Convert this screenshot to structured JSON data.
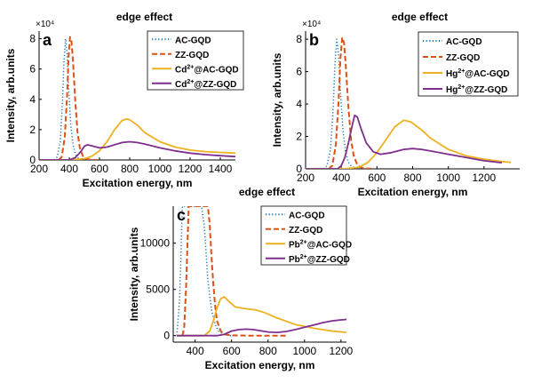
{
  "colors": {
    "ac": "#1f77b4",
    "zz": "#d95319",
    "cd_ac": "#edb120",
    "cd_zz": "#7e2f8e",
    "axis": "#000000"
  },
  "chart_data": [
    {
      "type": "line",
      "panel_letter": "a",
      "title": "edge effect",
      "xlabel": "Excitation energy, nm",
      "ylabel": "Intensity, arb.units",
      "exponent_label": "×10⁴",
      "xlim": [
        200,
        1500
      ],
      "ylim": [
        0,
        8.5
      ],
      "xticks": [
        200,
        400,
        600,
        800,
        1000,
        1200,
        1400
      ],
      "yticks": [
        0,
        2,
        4,
        6,
        8
      ],
      "grid": false,
      "legend_position": "top-right",
      "series": [
        {
          "name": "AC-GQD",
          "ion": "",
          "suffix": "",
          "style": "dotted",
          "color_key": "ac",
          "x": [
            300,
            320,
            340,
            355,
            365,
            375,
            385,
            395,
            410,
            425,
            440,
            460,
            480,
            500,
            530
          ],
          "y": [
            0,
            0.2,
            1.2,
            3.8,
            6.5,
            8.0,
            7.0,
            4.8,
            2.3,
            1.0,
            0.4,
            0.12,
            0.05,
            0.02,
            0
          ]
        },
        {
          "name": "ZZ-GQD",
          "ion": "",
          "suffix": "",
          "style": "dashed",
          "color_key": "zz",
          "x": [
            330,
            350,
            370,
            385,
            395,
            405,
            415,
            425,
            440,
            455,
            470,
            490,
            510,
            540,
            580
          ],
          "y": [
            0,
            0.2,
            1.5,
            4.2,
            6.8,
            8.1,
            7.8,
            6.4,
            3.8,
            1.8,
            0.8,
            0.25,
            0.08,
            0.02,
            0
          ]
        },
        {
          "name": "Cd",
          "ion": "2+",
          "suffix": "@AC-GQD",
          "style": "solid",
          "color_key": "cd_ac",
          "x": [
            200,
            400,
            500,
            550,
            600,
            650,
            700,
            750,
            780,
            800,
            850,
            900,
            1000,
            1100,
            1200,
            1300,
            1400,
            1500
          ],
          "y": [
            0,
            0,
            0.08,
            0.25,
            0.6,
            1.2,
            2.0,
            2.6,
            2.7,
            2.65,
            2.3,
            1.8,
            1.2,
            0.85,
            0.65,
            0.55,
            0.5,
            0.45
          ]
        },
        {
          "name": "Cd",
          "ion": "2+",
          "suffix": "@ZZ-GQD",
          "style": "solid",
          "color_key": "cd_zz",
          "x": [
            200,
            400,
            440,
            480,
            500,
            520,
            560,
            600,
            650,
            700,
            750,
            800,
            850,
            900,
            1000,
            1100,
            1200,
            1300,
            1400,
            1500
          ],
          "y": [
            0,
            0,
            0.15,
            0.6,
            0.9,
            1.0,
            0.9,
            0.8,
            0.85,
            1.0,
            1.15,
            1.2,
            1.15,
            1.05,
            0.8,
            0.6,
            0.45,
            0.35,
            0.28,
            0.22
          ]
        }
      ]
    },
    {
      "type": "line",
      "panel_letter": "b",
      "title": "edge effect",
      "xlabel": "Excitation energy, nm",
      "ylabel": "Intensity, arb.units",
      "exponent_label": "×10⁴",
      "xlim": [
        200,
        1400
      ],
      "ylim": [
        0,
        8.5
      ],
      "xticks": [
        200,
        400,
        600,
        800,
        1000,
        1200
      ],
      "yticks": [
        0,
        2,
        4,
        6,
        8
      ],
      "grid": false,
      "legend_position": "top-right",
      "series": [
        {
          "name": "AC-GQD",
          "ion": "",
          "suffix": "",
          "style": "dotted",
          "color_key": "ac",
          "x": [
            300,
            320,
            340,
            355,
            365,
            375,
            385,
            395,
            410,
            425,
            440,
            460,
            480,
            500,
            530
          ],
          "y": [
            0,
            0.2,
            1.2,
            3.8,
            6.5,
            8.0,
            7.0,
            4.8,
            2.3,
            1.0,
            0.4,
            0.12,
            0.05,
            0.02,
            0
          ]
        },
        {
          "name": "ZZ-GQD",
          "ion": "",
          "suffix": "",
          "style": "dashed",
          "color_key": "zz",
          "x": [
            330,
            350,
            370,
            385,
            395,
            405,
            415,
            425,
            440,
            455,
            470,
            490,
            510,
            540,
            580
          ],
          "y": [
            0,
            0.2,
            1.5,
            4.2,
            6.8,
            8.1,
            7.8,
            6.4,
            3.8,
            1.8,
            0.8,
            0.25,
            0.08,
            0.02,
            0
          ]
        },
        {
          "name": "Hg",
          "ion": "2+",
          "suffix": "@AC-GQD",
          "style": "solid",
          "color_key": "cd_ac",
          "x": [
            200,
            420,
            500,
            550,
            600,
            650,
            700,
            750,
            790,
            850,
            900,
            1000,
            1100,
            1200,
            1300,
            1350
          ],
          "y": [
            0,
            0,
            0.1,
            0.4,
            1.0,
            1.8,
            2.6,
            3.0,
            2.9,
            2.4,
            1.9,
            1.2,
            0.8,
            0.6,
            0.45,
            0.4
          ]
        },
        {
          "name": "Hg",
          "ion": "2+",
          "suffix": "@ZZ-GQD",
          "style": "solid",
          "color_key": "cd_zz",
          "x": [
            200,
            380,
            400,
            420,
            440,
            460,
            475,
            490,
            510,
            540,
            580,
            620,
            680,
            750,
            800,
            850,
            900,
            1000,
            1100,
            1200,
            1300
          ],
          "y": [
            0,
            0,
            0.2,
            0.7,
            1.6,
            2.6,
            3.3,
            3.2,
            2.5,
            1.6,
            1.05,
            0.9,
            1.0,
            1.2,
            1.25,
            1.2,
            1.1,
            0.9,
            0.7,
            0.5,
            0.38
          ]
        }
      ]
    },
    {
      "type": "line",
      "panel_letter": "c",
      "title": "edge effect",
      "xlabel": "Excitation energy, nm",
      "ylabel": "Intensity, arb.units",
      "exponent_label": "",
      "xlim": [
        280,
        1230
      ],
      "ylim": [
        -700,
        14000
      ],
      "xticks": [
        400,
        600,
        800,
        1000,
        1200
      ],
      "yticks": [
        0,
        5000,
        10000
      ],
      "grid": false,
      "legend_position": "top-right",
      "series": [
        {
          "name": "AC-GQD",
          "ion": "",
          "suffix": "",
          "style": "dotted",
          "color_key": "ac",
          "x": [
            300,
            315,
            330,
            345,
            360,
            375,
            390,
            405,
            420,
            435,
            450,
            470,
            490,
            510,
            530,
            560,
            600
          ],
          "y": [
            0,
            4000,
            14000,
            14000,
            14000,
            14000,
            14000,
            14000,
            14000,
            14000,
            12000,
            6000,
            2800,
            1200,
            450,
            100,
            0
          ]
        },
        {
          "name": "ZZ-GQD",
          "ion": "",
          "suffix": "",
          "style": "dashed",
          "color_key": "zz",
          "x": [
            330,
            340,
            350,
            365,
            380,
            440,
            470,
            480,
            490,
            500,
            510,
            520,
            540,
            560,
            600,
            700,
            800,
            900
          ],
          "y": [
            0,
            800,
            5000,
            14000,
            14000,
            14000,
            14000,
            12000,
            8500,
            5500,
            3200,
            1600,
            500,
            150,
            30,
            0,
            0,
            0
          ]
        },
        {
          "name": "Pb",
          "ion": "2+",
          "suffix": "@AC-GQD",
          "style": "solid",
          "color_key": "cd_ac",
          "x": [
            300,
            450,
            480,
            500,
            520,
            540,
            560,
            580,
            620,
            680,
            730,
            780,
            850,
            950,
            1050,
            1150,
            1230
          ],
          "y": [
            0,
            0,
            500,
            1600,
            3000,
            4000,
            4200,
            3800,
            3100,
            2900,
            2800,
            2500,
            1900,
            1200,
            800,
            500,
            350
          ]
        },
        {
          "name": "Pb",
          "ion": "2+",
          "suffix": "@ZZ-GQD",
          "style": "solid",
          "color_key": "cd_zz",
          "x": [
            300,
            520,
            560,
            600,
            640,
            680,
            720,
            760,
            800,
            850,
            900,
            950,
            1000,
            1050,
            1100,
            1150,
            1200,
            1230
          ],
          "y": [
            0,
            0,
            150,
            500,
            650,
            700,
            650,
            520,
            400,
            350,
            450,
            650,
            900,
            1150,
            1400,
            1600,
            1700,
            1750
          ]
        }
      ]
    }
  ]
}
